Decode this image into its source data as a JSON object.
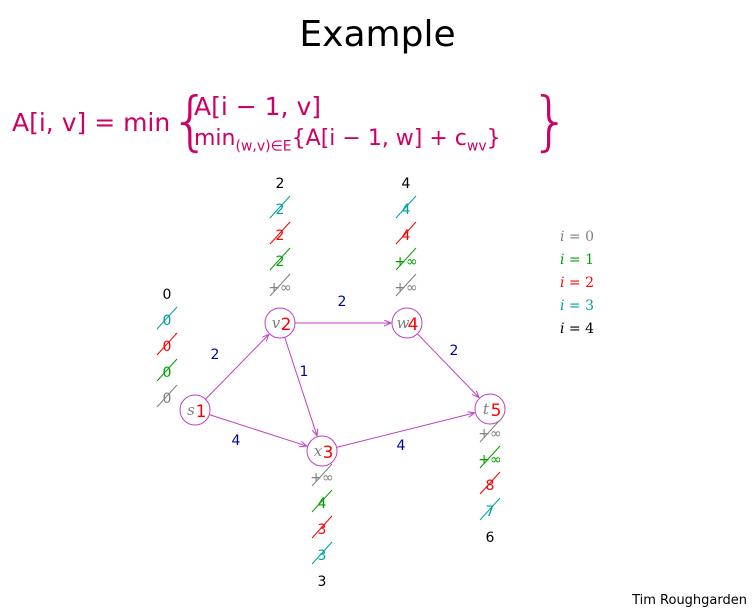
{
  "slide": {
    "title": "Example",
    "author": "Tim Roughgarden"
  },
  "formula": {
    "lhs": "A[i, v] = min",
    "case1": "A[i − 1, v]",
    "case2_min": "min",
    "case2_sub": "(w,v)∈E",
    "case2_rest": "{A[i − 1, w] + c",
    "case2_csub": "wv",
    "case2_close": "}"
  },
  "legend": [
    {
      "var": "i",
      "value": "= 0",
      "color": "#808080"
    },
    {
      "var": "i",
      "value": "= 1",
      "color": "#00a000"
    },
    {
      "var": "i",
      "value": "= 2",
      "color": "#ff0000"
    },
    {
      "var": "i",
      "value": "= 3",
      "color": "#00a0a0"
    },
    {
      "var": "i",
      "value": "= 4",
      "color": "#000000"
    }
  ],
  "nodes": [
    {
      "id": "s",
      "label": "s",
      "order": "1"
    },
    {
      "id": "v",
      "label": "v",
      "order": "2"
    },
    {
      "id": "w",
      "label": "w",
      "order": "4"
    },
    {
      "id": "x",
      "label": "x",
      "order": "3"
    },
    {
      "id": "t",
      "label": "t",
      "order": "5"
    }
  ],
  "edges": [
    {
      "from": "s",
      "to": "v",
      "cost": "2"
    },
    {
      "from": "s",
      "to": "x",
      "cost": "4"
    },
    {
      "from": "v",
      "to": "x",
      "cost": "1"
    },
    {
      "from": "v",
      "to": "w",
      "cost": "2"
    },
    {
      "from": "x",
      "to": "t",
      "cost": "4"
    },
    {
      "from": "w",
      "to": "t",
      "cost": "2"
    }
  ],
  "value_stacks": [
    {
      "node": "s",
      "values": [
        {
          "text": "0",
          "color": "#808080",
          "crossed": true
        },
        {
          "text": "0",
          "color": "#00a000",
          "crossed": true
        },
        {
          "text": "0",
          "color": "#ff0000",
          "crossed": true
        },
        {
          "text": "0",
          "color": "#00a0a0",
          "crossed": true
        },
        {
          "text": "0",
          "color": "#000000",
          "crossed": false
        }
      ]
    },
    {
      "node": "v",
      "values": [
        {
          "text": "+∞",
          "color": "#808080",
          "crossed": true
        },
        {
          "text": "2",
          "color": "#00a000",
          "crossed": true
        },
        {
          "text": "2",
          "color": "#ff0000",
          "crossed": true
        },
        {
          "text": "2",
          "color": "#00a0a0",
          "crossed": true
        },
        {
          "text": "2",
          "color": "#000000",
          "crossed": false
        }
      ]
    },
    {
      "node": "w",
      "values": [
        {
          "text": "+∞",
          "color": "#808080",
          "crossed": true
        },
        {
          "text": "+∞",
          "color": "#00a000",
          "crossed": true
        },
        {
          "text": "4",
          "color": "#ff0000",
          "crossed": true
        },
        {
          "text": "4",
          "color": "#00a0a0",
          "crossed": true
        },
        {
          "text": "4",
          "color": "#000000",
          "crossed": false
        }
      ]
    },
    {
      "node": "x",
      "values": [
        {
          "text": "+∞",
          "color": "#808080",
          "crossed": true
        },
        {
          "text": "4",
          "color": "#00a000",
          "crossed": true
        },
        {
          "text": "3",
          "color": "#ff0000",
          "crossed": true
        },
        {
          "text": "3",
          "color": "#00a0a0",
          "crossed": true
        },
        {
          "text": "3",
          "color": "#000000",
          "crossed": false
        }
      ]
    },
    {
      "node": "t",
      "values": [
        {
          "text": "+∞",
          "color": "#808080",
          "crossed": true
        },
        {
          "text": "+∞",
          "color": "#00a000",
          "crossed": true
        },
        {
          "text": "8",
          "color": "#ff0000",
          "crossed": true
        },
        {
          "text": "7",
          "color": "#00a0a0",
          "crossed": true
        },
        {
          "text": "6",
          "color": "#000000",
          "crossed": false
        }
      ]
    }
  ],
  "colors": {
    "formula": "#cc0066",
    "edge": "#c040c0",
    "node": "#c040c0",
    "edge_cost": "#0000a0",
    "order": "#ff0000",
    "strike": "#000000"
  }
}
